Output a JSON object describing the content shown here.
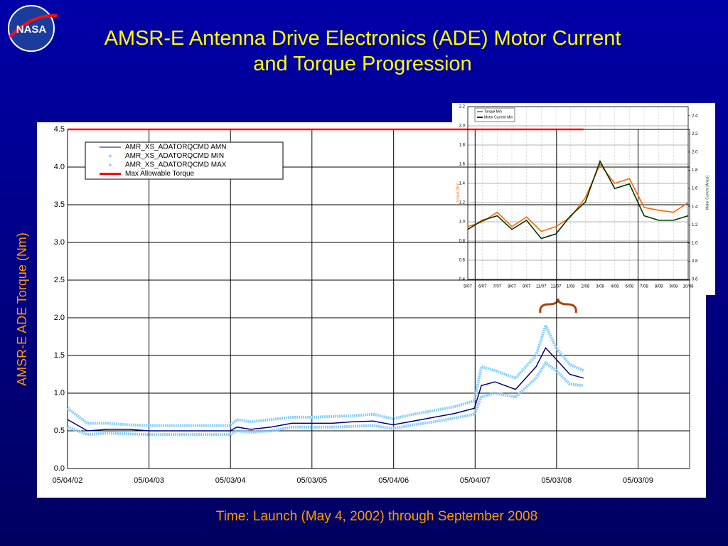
{
  "logo": "NASA",
  "title": "AMSR-E Antenna Drive Electronics (ADE) Motor Current and Torque Progression",
  "caption": "Time: Launch (May 4, 2002) through September 2008",
  "chart_data": [
    {
      "type": "line",
      "ylabel": "AMSR-E ADE Torque (Nm)",
      "x": [
        "05/04/02",
        "08/01/02",
        "11/01/02",
        "02/01/03",
        "05/01/03",
        "08/01/03",
        "11/01/03",
        "02/01/04",
        "05/01/04",
        "06/01/04",
        "08/01/04",
        "11/01/04",
        "02/01/05",
        "05/01/05",
        "08/01/05",
        "11/01/05",
        "02/01/06",
        "05/01/06",
        "08/01/06",
        "11/01/06",
        "02/01/07",
        "05/01/07",
        "06/01/07",
        "08/01/07",
        "11/01/07",
        "02/01/08",
        "03/15/08",
        "05/01/08",
        "07/01/08",
        "09/01/08"
      ],
      "xlim": [
        "05/04/02",
        "12/20/09"
      ],
      "xticks": [
        "05/04/02",
        "05/04/03",
        "05/03/04",
        "05/03/05",
        "05/04/06",
        "05/04/07",
        "05/03/08",
        "05/03/09"
      ],
      "ylim": [
        0,
        4.5
      ],
      "yticks": [
        {
          "value": 0,
          "label": "0.0"
        },
        0.5,
        {
          "value": 1,
          "label": "1.0"
        },
        1.5,
        {
          "value": 2,
          "label": "2.0"
        },
        2.5,
        {
          "value": 3,
          "label": "3.0"
        },
        3.5,
        {
          "value": 4,
          "label": "4.0"
        },
        4.5
      ],
      "grid": true,
      "series": [
        {
          "name": "AMR_XS_ADATORQCMD AMN",
          "color": "#000080",
          "values": [
            0.65,
            0.5,
            0.52,
            0.52,
            0.5,
            0.5,
            0.5,
            0.5,
            0.5,
            0.55,
            0.52,
            0.55,
            0.6,
            0.6,
            0.6,
            0.62,
            0.63,
            0.58,
            0.63,
            0.68,
            0.73,
            0.8,
            1.1,
            1.15,
            1.05,
            1.35,
            1.6,
            1.45,
            1.25,
            1.2
          ]
        },
        {
          "name": "AMR_XS_ADATORQCMD MIN",
          "color": "#87cefa",
          "values": [
            0.55,
            0.45,
            0.47,
            0.46,
            0.45,
            0.45,
            0.45,
            0.45,
            0.45,
            0.5,
            0.48,
            0.5,
            0.55,
            0.55,
            0.55,
            0.56,
            0.57,
            0.53,
            0.58,
            0.62,
            0.67,
            0.72,
            0.95,
            1.0,
            0.95,
            1.2,
            1.4,
            1.3,
            1.12,
            1.1
          ]
        },
        {
          "name": "AMR_XS_ADATORQCMD MAX",
          "color": "#87cefa",
          "values": [
            0.8,
            0.6,
            0.6,
            0.58,
            0.57,
            0.57,
            0.57,
            0.57,
            0.57,
            0.65,
            0.62,
            0.65,
            0.68,
            0.68,
            0.69,
            0.7,
            0.72,
            0.66,
            0.72,
            0.77,
            0.82,
            0.9,
            1.35,
            1.3,
            1.2,
            1.5,
            1.9,
            1.6,
            1.38,
            1.3
          ]
        },
        {
          "name": "Max Allowable Torque",
          "color": "#ff0000",
          "values": [
            4.5,
            4.5,
            4.5,
            4.5,
            4.5,
            4.5,
            4.5,
            4.5,
            4.5,
            4.5,
            4.5,
            4.5,
            4.5,
            4.5,
            4.5,
            4.5,
            4.5,
            4.5,
            4.5,
            4.5,
            4.5,
            4.5,
            4.5,
            4.5,
            4.5,
            4.5,
            4.5,
            4.5,
            4.5,
            4.5
          ]
        }
      ]
    },
    {
      "type": "line",
      "ylabel": "Torque [Nm]",
      "y2label": "Motor Current [Amps]",
      "categories": [
        "5/07",
        "6/07",
        "7/07",
        "8/07",
        "9/07",
        "11/07",
        "12/07",
        "1/08",
        "2/08",
        "3/08",
        "4/08",
        "6/08",
        "7/08",
        "8/08",
        "9/08",
        "10/08"
      ],
      "ylim": [
        0.4,
        2.2
      ],
      "yticks": [
        0.4,
        0.6,
        0.8,
        {
          "value": 1,
          "label": "1.0"
        },
        1.2,
        1.4,
        1.6,
        1.8,
        {
          "value": 2,
          "label": "2.0"
        },
        2.2
      ],
      "y2lim": [
        0.6,
        2.5
      ],
      "y2ticks": [
        0.6,
        0.8,
        {
          "value": 1,
          "label": "1.0"
        },
        1.2,
        1.4,
        1.6,
        1.8,
        {
          "value": 2,
          "label": "2.0"
        },
        2.2,
        2.4
      ],
      "grid": true,
      "series": [
        {
          "name": "Torque Min",
          "color": "#ff6600",
          "values": [
            0.95,
            1.0,
            1.1,
            0.95,
            1.05,
            0.9,
            0.95,
            1.05,
            1.25,
            1.6,
            1.4,
            1.45,
            1.15,
            1.12,
            1.1,
            1.2
          ]
        },
        {
          "name": "Motor Current Min",
          "color": "#003300",
          "axis": "y2",
          "values": [
            1.15,
            1.25,
            1.3,
            1.15,
            1.25,
            1.05,
            1.1,
            1.3,
            1.45,
            1.9,
            1.6,
            1.65,
            1.3,
            1.25,
            1.25,
            1.3
          ]
        }
      ]
    }
  ]
}
